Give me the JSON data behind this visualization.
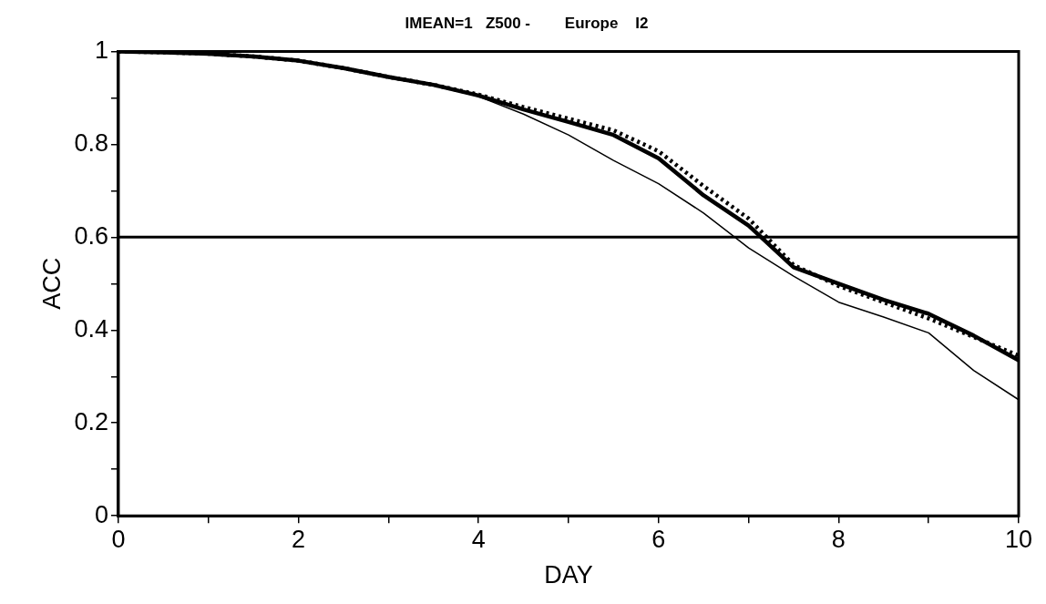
{
  "chart_data": {
    "type": "line",
    "title": "IMEAN=1   Z500 -        Europe    I2",
    "xlabel": "DAY",
    "ylabel": "ACC",
    "series": [
      {
        "color": "#000000",
        "line_style": "solid",
        "x": [
          0,
          0.5,
          1,
          1.5,
          2,
          2.5,
          3,
          3.5,
          4,
          4.5,
          5,
          5.5,
          6,
          6.5,
          7,
          7.5,
          8,
          8.5,
          9,
          9.5,
          10
        ],
        "values": [
          1.0,
          0.998,
          0.995,
          0.989,
          0.98,
          0.964,
          0.945,
          0.928,
          0.905,
          0.875,
          0.848,
          0.82,
          0.77,
          0.69,
          0.625,
          0.535,
          0.5,
          0.465,
          0.435,
          0.388,
          0.335
        ]
      },
      {
        "color": "#000000",
        "line_style": "dotted",
        "x": [
          0,
          0.5,
          1,
          1.5,
          2,
          2.5,
          3,
          3.5,
          4,
          4.5,
          5,
          5.5,
          6,
          6.5,
          7,
          7.5,
          8,
          8.5,
          9,
          9.5,
          10
        ],
        "values": [
          1.0,
          0.998,
          0.995,
          0.989,
          0.98,
          0.964,
          0.945,
          0.928,
          0.907,
          0.88,
          0.855,
          0.83,
          0.785,
          0.71,
          0.64,
          0.54,
          0.495,
          0.46,
          0.425,
          0.385,
          0.345
        ]
      },
      {
        "color": "#000000",
        "line_style": "solid",
        "x": [
          0,
          0.5,
          1,
          1.5,
          2,
          2.5,
          3,
          3.5,
          4,
          4.5,
          5,
          5.5,
          6,
          6.5,
          7,
          7.5,
          8,
          8.5,
          9,
          9.5,
          10
        ],
        "values": [
          1.0,
          0.998,
          0.995,
          0.989,
          0.98,
          0.964,
          0.945,
          0.928,
          0.903,
          0.865,
          0.82,
          0.765,
          0.715,
          0.652,
          0.577,
          0.516,
          0.46,
          0.428,
          0.394,
          0.313,
          0.25
        ]
      }
    ],
    "xlim": [
      0,
      10
    ],
    "ylim": [
      0,
      1
    ],
    "xticks": [
      0,
      {
        "value": 1,
        "label": null
      },
      2,
      {
        "value": 3,
        "label": null
      },
      4,
      {
        "value": 5,
        "label": null
      },
      6,
      {
        "value": 7,
        "label": null
      },
      8,
      {
        "value": 9,
        "label": null
      },
      10
    ],
    "yticks": [
      0,
      {
        "value": 0.1,
        "label": null
      },
      0.2,
      {
        "value": 0.3,
        "label": null
      },
      0.4,
      {
        "value": 0.5,
        "label": null
      },
      0.6,
      {
        "value": 0.7,
        "label": null
      },
      0.8,
      {
        "value": 0.9,
        "label": null
      },
      1
    ],
    "ref_lines": [
      {
        "axis": "y",
        "value": 0.6,
        "color": "#000000"
      }
    ],
    "grid": false,
    "legend": false,
    "marker": "none"
  }
}
